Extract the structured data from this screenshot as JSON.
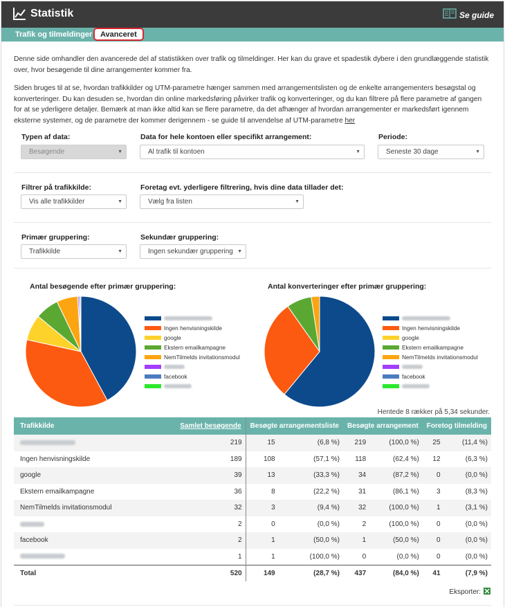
{
  "header": {
    "title": "Statistik",
    "guide_label": "Se guide"
  },
  "tabs": [
    {
      "label": "Trafik og tilmeldinger",
      "active": false
    },
    {
      "label": "Avanceret",
      "active": true
    }
  ],
  "intro": {
    "p1": "Denne side omhandler den avancerede del af statistikken over trafik og tilmeldinger. Her kan du grave et spadestik dybere i den grundlæggende statistik over, hvor besøgende til dine arrangementer kommer fra.",
    "p2": "Siden bruges til at se, hvordan trafikkilder og UTM-parametre hænger sammen med arrangementslisten og de enkelte arrangementers besøgstal og konverteringer. Du kan desuden se, hvordan din online markedsføring påvirker trafik og konverteringer, og du kan filtrere på flere parametre af gangen for at se yderligere detaljer. Bemærk at man ikke altid kan se flere parametre, da det afhænger af hvordan arrangementer er markedsført igennem eksterne systemer, og de parametre der kommer derigennem - se guide til anvendelse af UTM-parametre ",
    "link": "her"
  },
  "filters": {
    "data_type": {
      "label": "Typen af data:",
      "value": "Besøgende"
    },
    "scope": {
      "label": "Data for hele kontoen eller specifikt arrangement:",
      "value": "Al trafik til kontoen"
    },
    "period": {
      "label": "Periode:",
      "value": "Seneste 30 dage"
    },
    "traffic_source": {
      "label": "Filtrer på trafikkilde:",
      "value": "Vis alle trafikkilder"
    },
    "extra": {
      "label": "Foretag evt. yderligere filtrering, hvis dine data tillader det:",
      "value": "Vælg fra listen"
    },
    "primary": {
      "label": "Primær gruppering:",
      "value": "Trafikkilde"
    },
    "secondary": {
      "label": "Sekundær gruppering:",
      "value": "Ingen sekundær gruppering"
    }
  },
  "charts": {
    "visitors_title": "Antal besøgende efter primær gruppering:",
    "conversions_title": "Antal konverteringer efter primær gruppering:"
  },
  "chart_data": [
    {
      "type": "pie",
      "title": "Antal besøgende efter primær gruppering:",
      "labels": [
        "[skjult]",
        "Ingen henvisningskilde",
        "google",
        "Ekstern emailkampagne",
        "NemTilmelds invitationsmodul",
        "[skjult]",
        "facebook",
        "[skjult]"
      ],
      "values": [
        219,
        189,
        39,
        36,
        32,
        2,
        2,
        1
      ],
      "colors": [
        "#0d4a8c",
        "#fc5a10",
        "#fdd22a",
        "#5aa832",
        "#fca510",
        "#a33ffc",
        "#4a7cc0",
        "#2ce82c"
      ]
    },
    {
      "type": "pie",
      "title": "Antal konverteringer efter primær gruppering:",
      "labels": [
        "[skjult]",
        "Ingen henvisningskilde",
        "google",
        "Ekstern emailkampagne",
        "NemTilmelds invitationsmodul",
        "[skjult]",
        "facebook",
        "[skjult]"
      ],
      "values": [
        25,
        12,
        0,
        3,
        1,
        0,
        0,
        0
      ],
      "colors": [
        "#0d4a8c",
        "#fc5a10",
        "#fdd22a",
        "#5aa832",
        "#fca510",
        "#a33ffc",
        "#4a7cc0",
        "#2ce82c"
      ]
    }
  ],
  "legend": [
    {
      "label": "",
      "blurred": true,
      "w": 70,
      "color": "#0d4a8c"
    },
    {
      "label": "Ingen henvisningskilde",
      "blurred": false,
      "color": "#fc5a10"
    },
    {
      "label": "google",
      "blurred": false,
      "color": "#fdd22a"
    },
    {
      "label": "Ekstern emailkampagne",
      "blurred": false,
      "color": "#5aa832"
    },
    {
      "label": "NemTilmelds invitationsmodul",
      "blurred": false,
      "color": "#fca510"
    },
    {
      "label": "",
      "blurred": true,
      "w": 30,
      "color": "#a33ffc"
    },
    {
      "label": "facebook",
      "blurred": false,
      "color": "#4a7cc0"
    },
    {
      "label": "",
      "blurred": true,
      "w": 40,
      "color": "#2ce82c"
    }
  ],
  "fetched": "Hentede 8 rækker på 5,34 sekunder.",
  "table": {
    "headers": [
      "Trafikkilde",
      "Samlet besøgende",
      "Besøgte arrangementsliste",
      "Besøgte arrangement",
      "Foretog tilmelding"
    ],
    "rows": [
      {
        "name": "",
        "blurred": true,
        "w": 80,
        "total": "219",
        "list": "15",
        "list_pct": "(6,8 %)",
        "event": "219",
        "event_pct": "(100,0 %)",
        "signup": "25",
        "signup_pct": "(11,4 %)"
      },
      {
        "name": "Ingen henvisningskilde",
        "total": "189",
        "list": "108",
        "list_pct": "(57,1 %)",
        "event": "118",
        "event_pct": "(62,4 %)",
        "signup": "12",
        "signup_pct": "(6,3 %)"
      },
      {
        "name": "google",
        "total": "39",
        "list": "13",
        "list_pct": "(33,3 %)",
        "event": "34",
        "event_pct": "(87,2 %)",
        "signup": "0",
        "signup_pct": "(0,0 %)"
      },
      {
        "name": "Ekstern emailkampagne",
        "total": "36",
        "list": "8",
        "list_pct": "(22,2 %)",
        "event": "31",
        "event_pct": "(86,1 %)",
        "signup": "3",
        "signup_pct": "(8,3 %)"
      },
      {
        "name": "NemTilmelds invitationsmodul",
        "total": "32",
        "list": "3",
        "list_pct": "(9,4 %)",
        "event": "32",
        "event_pct": "(100,0 %)",
        "signup": "1",
        "signup_pct": "(3,1 %)"
      },
      {
        "name": "",
        "blurred": true,
        "w": 35,
        "total": "2",
        "list": "0",
        "list_pct": "(0,0 %)",
        "event": "2",
        "event_pct": "(100,0 %)",
        "signup": "0",
        "signup_pct": "(0,0 %)"
      },
      {
        "name": "facebook",
        "total": "2",
        "list": "1",
        "list_pct": "(50,0 %)",
        "event": "1",
        "event_pct": "(50,0 %)",
        "signup": "0",
        "signup_pct": "(0,0 %)"
      },
      {
        "name": "",
        "blurred": true,
        "w": 65,
        "total": "1",
        "list": "1",
        "list_pct": "(100,0 %)",
        "event": "0",
        "event_pct": "(0,0 %)",
        "signup": "0",
        "signup_pct": "(0,0 %)"
      }
    ],
    "total": {
      "name": "Total",
      "total": "520",
      "list": "149",
      "list_pct": "(28,7 %)",
      "event": "437",
      "event_pct": "(84,0 %)",
      "signup": "41",
      "signup_pct": "(7,9 %)"
    }
  },
  "export_label": "Eksporter:",
  "colors": {
    "header_bg": "#3b3b3b",
    "accent_teal": "#6ab3ab",
    "active_tab_border": "#d8262f"
  }
}
